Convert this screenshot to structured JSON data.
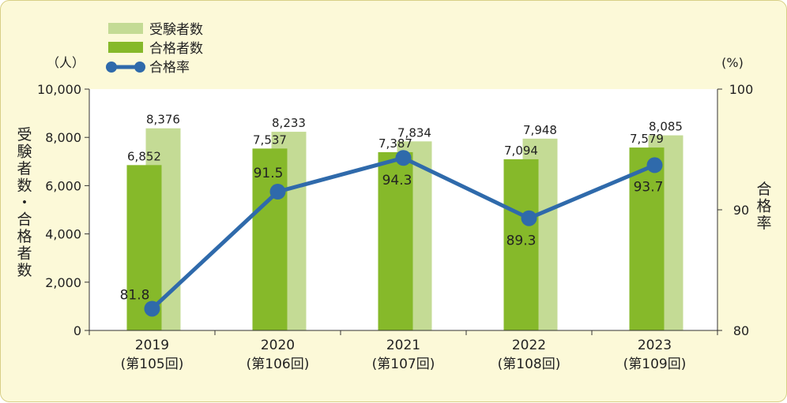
{
  "chart_data": {
    "type": "bar",
    "categories": [
      {
        "year": "2019",
        "session": "(第105回)"
      },
      {
        "year": "2020",
        "session": "(第106回)"
      },
      {
        "year": "2021",
        "session": "(第107回)"
      },
      {
        "year": "2022",
        "session": "(第108回)"
      },
      {
        "year": "2023",
        "session": "(第109回)"
      }
    ],
    "series": [
      {
        "name": "受験者数",
        "type": "bar",
        "axis": "left",
        "color": "#c4db95",
        "values": [
          8376,
          8233,
          7834,
          7948,
          8085
        ],
        "labels": [
          "8,376",
          "8,233",
          "7,834",
          "7,948",
          "8,085"
        ]
      },
      {
        "name": "合格者数",
        "type": "bar",
        "axis": "left",
        "color": "#86b92a",
        "values": [
          6852,
          7537,
          7387,
          7094,
          7579
        ],
        "labels": [
          "6,852",
          "7,537",
          "7,387",
          "7,094",
          "7,579"
        ]
      },
      {
        "name": "合格率",
        "type": "line",
        "axis": "right",
        "color": "#2f6aab",
        "values": [
          81.8,
          91.5,
          94.3,
          89.3,
          93.7
        ],
        "labels": [
          "81.8",
          "91.5",
          "94.3",
          "89.3",
          "93.7"
        ]
      }
    ],
    "y_left": {
      "unit": "（人）",
      "label": "受験者数・合格者数",
      "range": [
        0,
        10000
      ],
      "ticks": [
        0,
        2000,
        4000,
        6000,
        8000,
        10000
      ],
      "tick_labels": [
        "0",
        "2,000",
        "4,000",
        "6,000",
        "8,000",
        "10,000"
      ]
    },
    "y_right": {
      "unit": "(%)",
      "label": "合格率",
      "range": [
        80,
        100
      ],
      "ticks": [
        80,
        90,
        100
      ],
      "tick_labels": [
        "80",
        "90",
        "100"
      ]
    },
    "grid": false,
    "legend_position": "top-left",
    "colors": {
      "background": "#fcf9d8",
      "plot_area": "#ffffff",
      "border": "#d8cf86"
    }
  }
}
